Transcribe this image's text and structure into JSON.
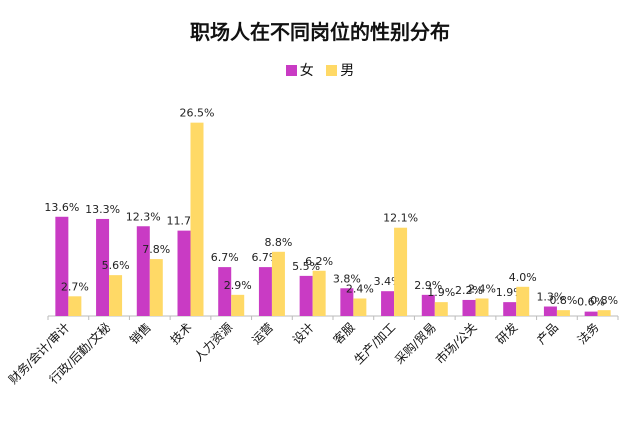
{
  "chart_data": {
    "type": "bar",
    "title": "职场人在不同岗位的性别分布",
    "xlabel": "",
    "ylabel": "",
    "legend_position": "top-center",
    "grid": false,
    "ylim": [
      0,
      27
    ],
    "categories": [
      "财务/会计/审计",
      "行政/后勤/文秘",
      "销售",
      "技术",
      "人力资源",
      "运营",
      "设计",
      "客服",
      "生产/加工",
      "采购/贸易",
      "市场/公关",
      "研发",
      "产品",
      "法务"
    ],
    "series": [
      {
        "name": "女",
        "color": "#C93BC4",
        "values": [
          13.6,
          13.3,
          12.3,
          11.7,
          6.7,
          6.7,
          5.5,
          3.8,
          3.4,
          2.9,
          2.2,
          1.9,
          1.3,
          0.6
        ],
        "labels": [
          "13.6%",
          "13.3%",
          "12.3%",
          "11.7%",
          "6.7%",
          "6.7%",
          "5.5%",
          "3.8%",
          "3.4%",
          "2.9%",
          "2.2%",
          "1.9%",
          "1.3%",
          "0.6%"
        ]
      },
      {
        "name": "男",
        "color": "#FFD966",
        "values": [
          2.7,
          5.6,
          7.8,
          26.5,
          2.9,
          8.8,
          6.2,
          2.4,
          12.1,
          1.9,
          2.4,
          4.0,
          0.8,
          0.8
        ],
        "labels": [
          "2.7%",
          "5.6%",
          "7.8%",
          "26.5%",
          "2.9%",
          "8.8%",
          "6.2%",
          "2.4%",
          "12.1%",
          "1.9%",
          "2.4%",
          "4.0%",
          "0.8%",
          "0.8%"
        ]
      }
    ]
  }
}
